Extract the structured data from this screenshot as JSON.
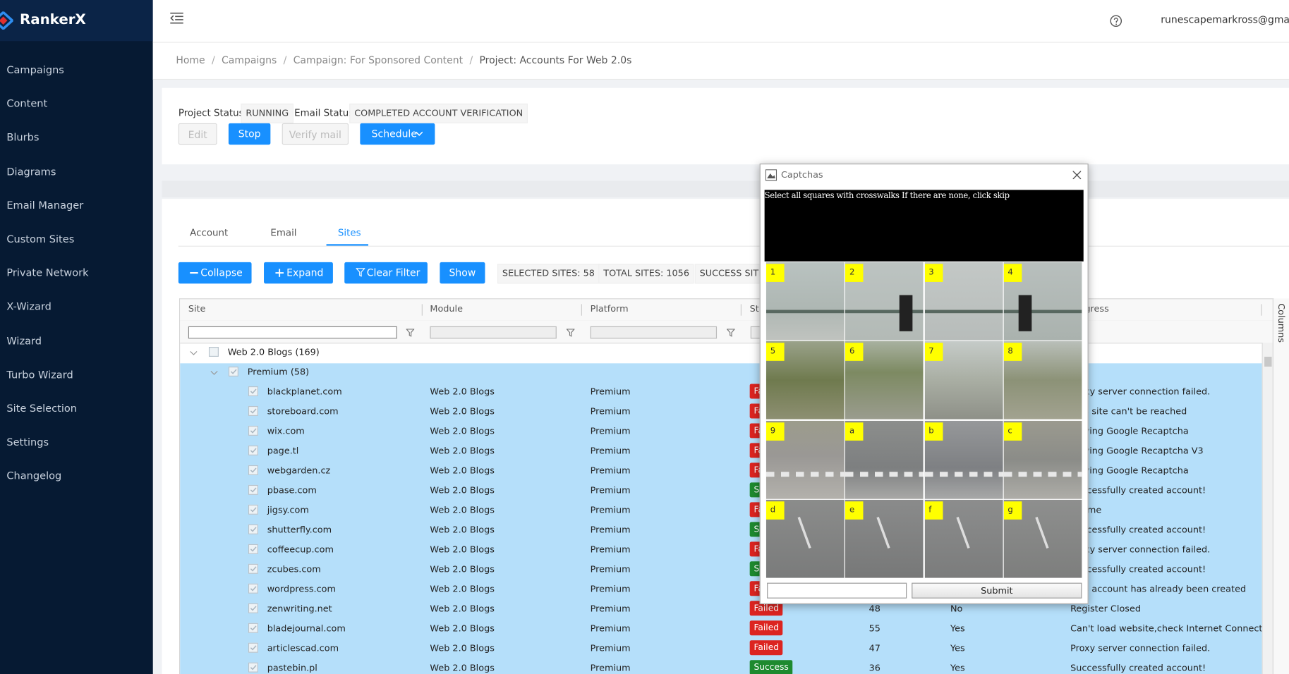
{
  "sidebar": {
    "logo": "RankerX",
    "menu": [
      "Campaigns",
      "Content",
      "Blurbs",
      "Diagrams",
      "Email Manager",
      "Custom Sites",
      "Private Network",
      "X-Wizard",
      "Wizard",
      "Turbo Wizard",
      "Site Selection",
      "Settings",
      "Changelog"
    ]
  },
  "header": {
    "user": "runescapemarkross@gmail.co"
  },
  "breadcrumb": [
    "Home",
    "Campaigns",
    "Campaign: For Sponsored Content",
    "Project: Accounts For Web 2.0s"
  ],
  "breadcrumb_separator": "/",
  "project": {
    "status_label": "Project Status:",
    "status": "RUNNING",
    "email_label": "Email Status:",
    "email_status": "COMPLETED ACCOUNT VERIFICATION",
    "buttons": [
      "Edit",
      "Stop",
      "Verify mail",
      "Schedule"
    ]
  },
  "tabs": [
    "Account",
    "Email",
    "Sites"
  ],
  "toolbar": {
    "buttons": [
      "Collapse",
      "Expand",
      "Clear Filter",
      "Show"
    ],
    "tags": [
      "SELECTED SITES: 58",
      "TOTAL SITES: 1056",
      "SUCCESS SITES"
    ]
  },
  "table": {
    "columns": [
      "Site",
      "Module",
      "Platform",
      "Status",
      "Progress"
    ],
    "side_panel": "Columns",
    "group": "Web 2.0 Blogs (169)",
    "subgroup": "Premium (58)",
    "rows": [
      {
        "site": "blackplanet.com",
        "module": "Web 2.0 Blogs",
        "platform": "Premium",
        "status": "Failed",
        "message": "Proxy server connection failed."
      },
      {
        "site": "storeboard.com",
        "module": "Web 2.0 Blogs",
        "platform": "Premium",
        "status": "Failed",
        "message": "This site can't be reached"
      },
      {
        "site": "wix.com",
        "module": "Web 2.0 Blogs",
        "platform": "Premium",
        "status": "Failed",
        "message": "Solving Google Recaptcha"
      },
      {
        "site": "page.tl",
        "module": "Web 2.0 Blogs",
        "platform": "Premium",
        "status": "Failed",
        "message": "Solving Google Recaptcha V3"
      },
      {
        "site": "webgarden.cz",
        "module": "Web 2.0 Blogs",
        "platform": "Premium",
        "status": "Failed",
        "message": "Solving Google Recaptcha"
      },
      {
        "site": "pbase.com",
        "module": "Web 2.0 Blogs",
        "platform": "Premium",
        "status": "Success",
        "message": "Successfully created account!"
      },
      {
        "site": "jigsy.com",
        "module": "Web 2.0 Blogs",
        "platform": "Premium",
        "status": "Failed",
        "message": "Theme"
      },
      {
        "site": "shutterfly.com",
        "module": "Web 2.0 Blogs",
        "platform": "Premium",
        "status": "Success",
        "message": "Successfully created account!"
      },
      {
        "site": "coffeecup.com",
        "module": "Web 2.0 Blogs",
        "platform": "Premium",
        "status": "Failed",
        "message": "Proxy server connection failed."
      },
      {
        "site": "zcubes.com",
        "module": "Web 2.0 Blogs",
        "platform": "Premium",
        "status": "Success",
        "message": "Successfully created account!"
      },
      {
        "site": "wordpress.com",
        "module": "Web 2.0 Blogs",
        "platform": "Premium",
        "status": "Failed",
        "message": "This account has already been created"
      },
      {
        "site": "zenwriting.net",
        "module": "Web 2.0 Blogs",
        "platform": "Premium",
        "status": "Failed",
        "count": "48",
        "flag": "No",
        "message": "Register Closed"
      },
      {
        "site": "bladejournal.com",
        "module": "Web 2.0 Blogs",
        "platform": "Premium",
        "status": "Failed",
        "count": "55",
        "flag": "Yes",
        "message": "Can't load website,check Internet Connection/..."
      },
      {
        "site": "articlescad.com",
        "module": "Web 2.0 Blogs",
        "platform": "Premium",
        "status": "Failed",
        "count": "47",
        "flag": "Yes",
        "message": "Proxy server connection failed."
      },
      {
        "site": "pastebin.pl",
        "module": "Web 2.0 Blogs",
        "platform": "Premium",
        "status": "Success",
        "count": "36",
        "flag": "Yes",
        "message": "Successfully created account!"
      }
    ]
  },
  "dialog": {
    "title": "Captchas",
    "instruction": "Select all squares with crosswalks If there are none, click skip",
    "cells": [
      "1",
      "2",
      "3",
      "4",
      "5",
      "6",
      "7",
      "8",
      "9",
      "a",
      "b",
      "c",
      "d",
      "e",
      "f",
      "g"
    ],
    "submit": "Submit"
  }
}
